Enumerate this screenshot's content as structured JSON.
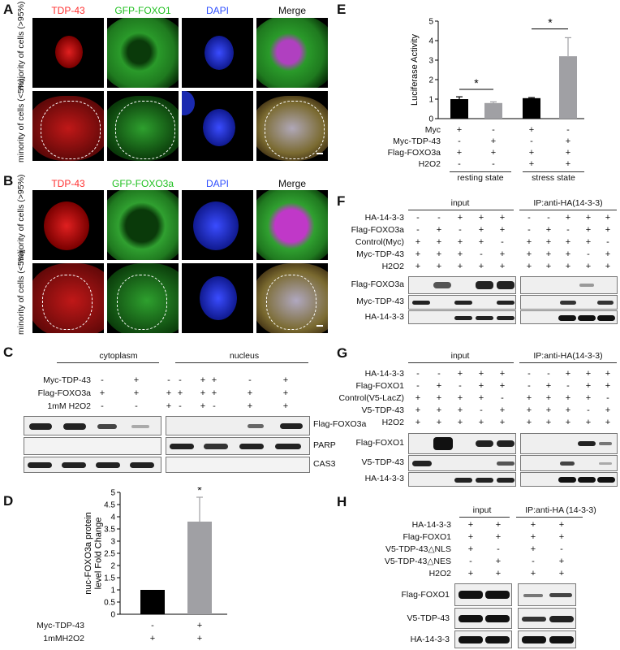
{
  "panels": {
    "A": "A",
    "B": "B",
    "C": "C",
    "D": "D",
    "E": "E",
    "F": "F",
    "G": "G",
    "H": "H"
  },
  "panel_A": {
    "channels": [
      "TDP-43",
      "GFP-FOXO1",
      "DAPI",
      "Merge"
    ],
    "rows": [
      "majority of cells (>95%)",
      "minority of cells (<5%)"
    ],
    "channel_colors": [
      "#ff3030",
      "#20d020",
      "#3050ff",
      "#111111"
    ]
  },
  "panel_B": {
    "channels": [
      "TDP-43",
      "GFP-FOXO3a",
      "DAPI",
      "Merge"
    ],
    "rows": [
      "majority of cells (>95%)",
      "minority of cells (<5%)"
    ]
  },
  "panel_C": {
    "groups": [
      "cytoplasm",
      "nucleus"
    ],
    "conditions": [
      {
        "label": "Myc-TDP-43",
        "signs": [
          "-",
          "+",
          "-",
          "+",
          "-",
          "+",
          "-",
          "+"
        ]
      },
      {
        "label": "Flag-FOXO3a",
        "signs": [
          "+",
          "+",
          "+",
          "+",
          "+",
          "+",
          "+",
          "+"
        ]
      },
      {
        "label": "1mM H2O2",
        "signs": [
          "-",
          "-",
          "+",
          "+",
          "-",
          "-",
          "+",
          "+"
        ]
      }
    ],
    "blots": [
      "Flag-FOXO3a",
      "PARP",
      "CAS3"
    ]
  },
  "panel_D": {
    "conditions": [
      {
        "label": "Myc-TDP-43",
        "signs": [
          "-",
          "+"
        ]
      },
      {
        "label": "1mMH2O2",
        "signs": [
          "+",
          "+"
        ]
      }
    ],
    "significance": "*"
  },
  "panel_E": {
    "conditions": [
      {
        "label": "Myc",
        "signs": [
          "+",
          "-",
          "+",
          "-"
        ]
      },
      {
        "label": "Myc-TDP-43",
        "signs": [
          "-",
          "+",
          "-",
          "+"
        ]
      },
      {
        "label": "Flag-FOXO3a",
        "signs": [
          "+",
          "+",
          "+",
          "+"
        ]
      },
      {
        "label": "H2O2",
        "signs": [
          "-",
          "-",
          "+",
          "+"
        ]
      }
    ],
    "states": [
      "resting state",
      "stress state"
    ],
    "significance": [
      "*",
      "*"
    ]
  },
  "panel_F": {
    "groups": [
      "input",
      "IP:anti-HA(14-3-3)"
    ],
    "conditions": [
      {
        "label": "HA-14-3-3",
        "signs": [
          "-",
          "-",
          "+",
          "+",
          "+",
          "-",
          "-",
          "+",
          "+",
          "+"
        ]
      },
      {
        "label": "Flag-FOXO3a",
        "signs": [
          "-",
          "+",
          "-",
          "+",
          "+",
          "-",
          "+",
          "-",
          "+",
          "+"
        ]
      },
      {
        "label": "Control(Myc)",
        "signs": [
          "+",
          "+",
          "+",
          "+",
          "-",
          "+",
          "+",
          "+",
          "+",
          "-"
        ]
      },
      {
        "label": "Myc-TDP-43",
        "signs": [
          "+",
          "+",
          "+",
          "-",
          "+",
          "+",
          "+",
          "+",
          "-",
          "+"
        ]
      },
      {
        "label": "H2O2",
        "signs": [
          "+",
          "+",
          "+",
          "+",
          "+",
          "+",
          "+",
          "+",
          "+",
          "+"
        ]
      }
    ],
    "blots": [
      "Flag-FOXO3a",
      "Myc-TDP-43",
      "HA-14-3-3"
    ]
  },
  "panel_G": {
    "groups": [
      "input",
      "IP:anti-HA(14-3-3)"
    ],
    "conditions": [
      {
        "label": "HA-14-3-3",
        "signs": [
          "-",
          "-",
          "+",
          "+",
          "+",
          "-",
          "-",
          "+",
          "+",
          "+"
        ]
      },
      {
        "label": "Flag-FOXO1",
        "signs": [
          "-",
          "+",
          "-",
          "+",
          "+",
          "-",
          "+",
          "-",
          "+",
          "+"
        ]
      },
      {
        "label": "Control(V5-LacZ)",
        "signs": [
          "+",
          "+",
          "+",
          "+",
          "-",
          "+",
          "+",
          "+",
          "+",
          "-"
        ]
      },
      {
        "label": "V5-TDP-43",
        "signs": [
          "+",
          "+",
          "+",
          "-",
          "+",
          "+",
          "+",
          "+",
          "-",
          "+"
        ]
      },
      {
        "label": "H2O2",
        "signs": [
          "+",
          "+",
          "+",
          "+",
          "+",
          "+",
          "+",
          "+",
          "+",
          "+"
        ]
      }
    ],
    "blots": [
      "Flag-FOXO1",
      "V5-TDP-43",
      "HA-14-3-3"
    ]
  },
  "panel_H": {
    "groups": [
      "input",
      "IP:anti-HA (14-3-3)"
    ],
    "conditions": [
      {
        "label": "HA-14-3-3",
        "signs": [
          "+",
          "+",
          "+",
          "+"
        ]
      },
      {
        "label": "Flag-FOXO1",
        "signs": [
          "+",
          "+",
          "+",
          "+"
        ]
      },
      {
        "label": "V5-TDP-43△NLS",
        "signs": [
          "+",
          "-",
          "+",
          "-"
        ]
      },
      {
        "label": "V5-TDP-43△NES",
        "signs": [
          "-",
          "+",
          "-",
          "+"
        ]
      },
      {
        "label": "H2O2",
        "signs": [
          "+",
          "+",
          "+",
          "+"
        ]
      }
    ],
    "blots": [
      "Flag-FOXO1",
      "V5-TDP-43",
      "HA-14-3-3"
    ]
  },
  "chart_data": [
    {
      "type": "bar",
      "panel": "D",
      "categories": [
        "1",
        "2"
      ],
      "values": [
        1.0,
        3.8
      ],
      "errors": [
        0,
        1.0
      ],
      "colors": [
        "#000000",
        "#a0a0a4"
      ],
      "ylabel": "nuc-FOXO3a protein level Fold Change",
      "ylim": [
        0,
        5
      ],
      "yticks": [
        0,
        0.5,
        1,
        1.5,
        2,
        2.5,
        3,
        3.5,
        4,
        4.5,
        5
      ]
    },
    {
      "type": "bar",
      "panel": "E",
      "categories": [
        "1",
        "2",
        "3",
        "4"
      ],
      "values": [
        1.0,
        0.8,
        1.05,
        3.2
      ],
      "errors": [
        0.12,
        0.06,
        0.03,
        0.95
      ],
      "colors": [
        "#000000",
        "#a0a0a4",
        "#000000",
        "#a0a0a4"
      ],
      "ylabel": "Luciferase  Activity",
      "ylim": [
        0,
        5
      ],
      "yticks": [
        0,
        1,
        2,
        3,
        4,
        5
      ]
    }
  ]
}
